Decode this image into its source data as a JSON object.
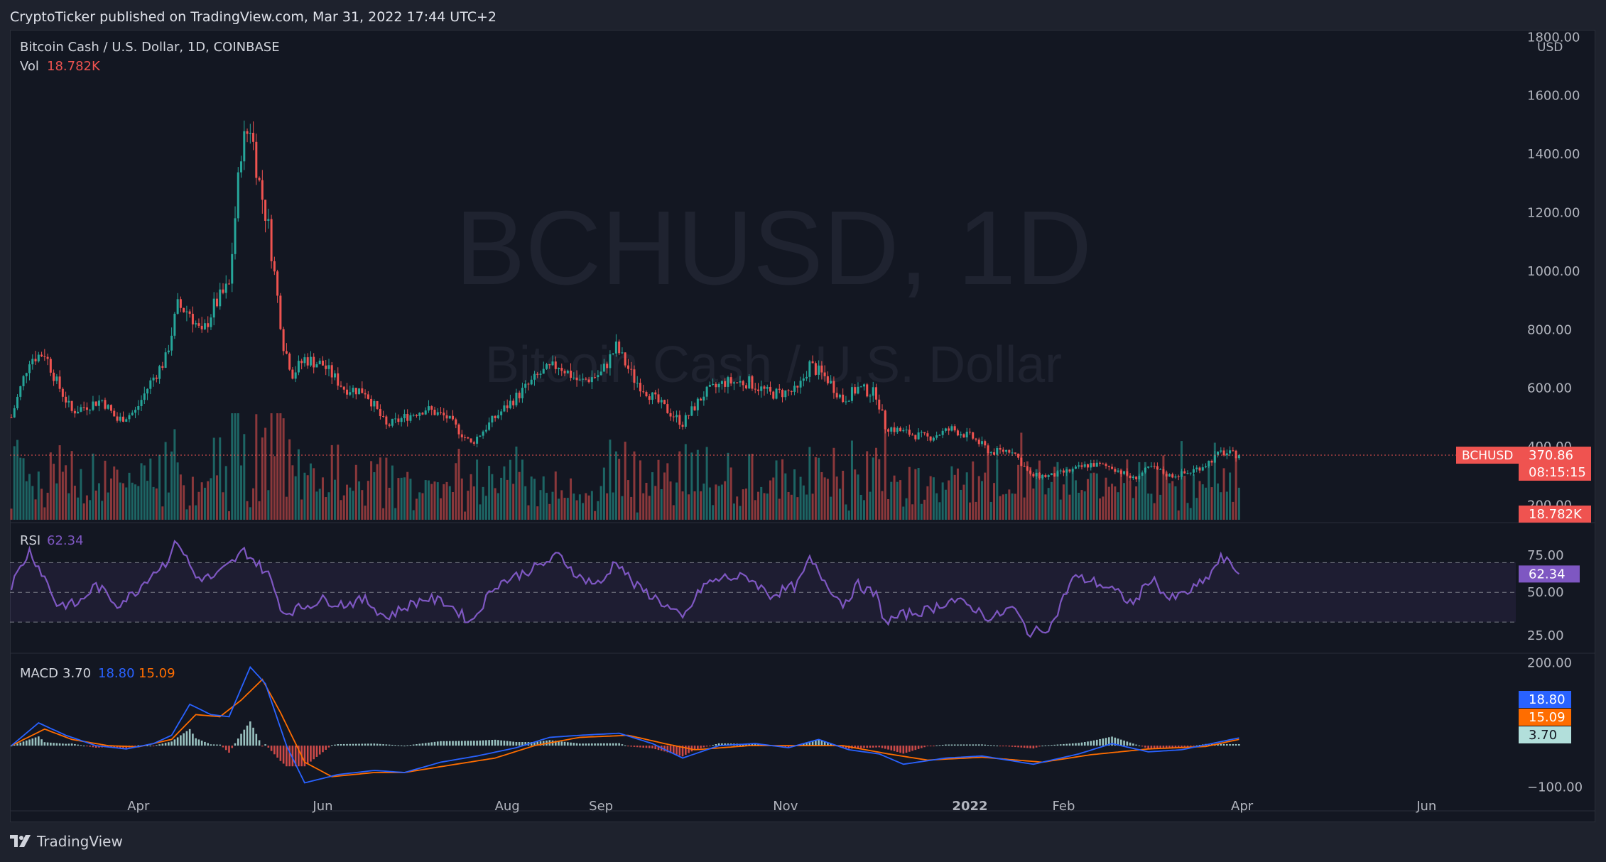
{
  "header": {
    "published": "CryptoTicker published on TradingView.com, Mar 31, 2022 17:44 UTC+2"
  },
  "footer": {
    "brand": "TradingView"
  },
  "watermark": {
    "symbol": "BCHUSD, 1D",
    "name": "Bitcoin Cash / U.S. Dollar"
  },
  "legend": {
    "main": "Bitcoin Cash / U.S. Dollar, 1D, COINBASE",
    "vol_label": "Vol",
    "vol_value": "18.782K",
    "rsi_label": "RSI",
    "rsi_value": "62.34",
    "macd_label": "MACD",
    "macd_hist": "3.70",
    "macd_line": "18.80",
    "macd_signal": "15.09"
  },
  "price_axis": {
    "currency": "USD",
    "ticks": [
      "200.00",
      "400.00",
      "600.00",
      "800.00",
      "1000.00",
      "1200.00",
      "1400.00",
      "1600.00",
      "1800.00"
    ],
    "symbol_tag": "BCHUSD",
    "last_price": "370.86",
    "countdown": "08:15:15",
    "vol_tag": "18.782K"
  },
  "rsi_axis": {
    "ticks": [
      "25.00",
      "50.00",
      "75.00"
    ],
    "tag": "62.34"
  },
  "macd_axis": {
    "ticks": [
      "−100.00",
      "200.00"
    ],
    "tags": [
      "18.80",
      "15.09",
      "3.70"
    ]
  },
  "time_axis": [
    "Apr",
    "Jun",
    "Aug",
    "Sep",
    "Nov",
    "2022",
    "Feb",
    "Apr",
    "Jun"
  ],
  "colors": {
    "bg": "#131722",
    "up": "#26a69a",
    "down": "#ef5350",
    "rsi": "#7e57c2",
    "macd": "#2962ff",
    "signal": "#ff6d00",
    "hist_up": "#b2dfdb",
    "hist_down": "#ef5350",
    "grid": "#2a2e39"
  },
  "chart_data": [
    {
      "type": "candlestick",
      "title": "Bitcoin Cash / U.S. Dollar, 1D, COINBASE",
      "ylim": [
        150,
        1800
      ],
      "x_range": [
        "2021-02-18",
        "2022-03-31"
      ],
      "last_price": 370.86,
      "price_path": [
        [
          "2021-02-18",
          500
        ],
        [
          "2021-02-24",
          700
        ],
        [
          "2021-03-01",
          720
        ],
        [
          "2021-03-05",
          620
        ],
        [
          "2021-03-10",
          520
        ],
        [
          "2021-03-15",
          540
        ],
        [
          "2021-03-20",
          560
        ],
        [
          "2021-03-25",
          490
        ],
        [
          "2021-03-31",
          520
        ],
        [
          "2021-04-05",
          620
        ],
        [
          "2021-04-10",
          700
        ],
        [
          "2021-04-14",
          880
        ],
        [
          "2021-04-18",
          860
        ],
        [
          "2021-04-22",
          780
        ],
        [
          "2021-04-26",
          880
        ],
        [
          "2021-05-01",
          950
        ],
        [
          "2021-05-05",
          1420
        ],
        [
          "2021-05-08",
          1500
        ],
        [
          "2021-05-11",
          1300
        ],
        [
          "2021-05-14",
          1150
        ],
        [
          "2021-05-19",
          750
        ],
        [
          "2021-05-22",
          650
        ],
        [
          "2021-05-26",
          700
        ],
        [
          "2021-06-01",
          680
        ],
        [
          "2021-06-08",
          600
        ],
        [
          "2021-06-15",
          590
        ],
        [
          "2021-06-22",
          470
        ],
        [
          "2021-06-28",
          500
        ],
        [
          "2021-07-05",
          530
        ],
        [
          "2021-07-12",
          500
        ],
        [
          "2021-07-20",
          410
        ],
        [
          "2021-07-28",
          500
        ],
        [
          "2021-08-05",
          580
        ],
        [
          "2021-08-12",
          650
        ],
        [
          "2021-08-18",
          680
        ],
        [
          "2021-08-25",
          620
        ],
        [
          "2021-09-01",
          650
        ],
        [
          "2021-09-06",
          740
        ],
        [
          "2021-09-12",
          630
        ],
        [
          "2021-09-20",
          550
        ],
        [
          "2021-09-28",
          480
        ],
        [
          "2021-10-05",
          580
        ],
        [
          "2021-10-12",
          620
        ],
        [
          "2021-10-20",
          620
        ],
        [
          "2021-10-27",
          580
        ],
        [
          "2021-11-05",
          590
        ],
        [
          "2021-11-09",
          680
        ],
        [
          "2021-11-15",
          630
        ],
        [
          "2021-11-20",
          560
        ],
        [
          "2021-11-25",
          600
        ],
        [
          "2021-12-01",
          580
        ],
        [
          "2021-12-04",
          470
        ],
        [
          "2021-12-10",
          450
        ],
        [
          "2021-12-18",
          430
        ],
        [
          "2021-12-26",
          460
        ],
        [
          "2022-01-02",
          430
        ],
        [
          "2022-01-08",
          380
        ],
        [
          "2022-01-15",
          390
        ],
        [
          "2022-01-21",
          300
        ],
        [
          "2022-01-28",
          300
        ],
        [
          "2022-02-04",
          320
        ],
        [
          "2022-02-10",
          340
        ],
        [
          "2022-02-17",
          330
        ],
        [
          "2022-02-24",
          290
        ],
        [
          "2022-03-02",
          330
        ],
        [
          "2022-03-08",
          300
        ],
        [
          "2022-03-14",
          310
        ],
        [
          "2022-03-20",
          340
        ],
        [
          "2022-03-25",
          380
        ],
        [
          "2022-03-31",
          371
        ]
      ]
    },
    {
      "type": "line",
      "title": "RSI",
      "ylim": [
        10,
        95
      ],
      "series": [
        {
          "name": "RSI",
          "points": [
            [
              "2021-02-18",
              55
            ],
            [
              "2021-02-24",
              78
            ],
            [
              "2021-03-01",
              60
            ],
            [
              "2021-03-05",
              42
            ],
            [
              "2021-03-12",
              42
            ],
            [
              "2021-03-18",
              55
            ],
            [
              "2021-03-25",
              42
            ],
            [
              "2021-03-31",
              50
            ],
            [
              "2021-04-05",
              62
            ],
            [
              "2021-04-10",
              70
            ],
            [
              "2021-04-14",
              85
            ],
            [
              "2021-04-20",
              60
            ],
            [
              "2021-04-26",
              60
            ],
            [
              "2021-05-02",
              70
            ],
            [
              "2021-05-06",
              78
            ],
            [
              "2021-05-10",
              70
            ],
            [
              "2021-05-14",
              62
            ],
            [
              "2021-05-19",
              36
            ],
            [
              "2021-05-25",
              40
            ],
            [
              "2021-06-01",
              45
            ],
            [
              "2021-06-08",
              42
            ],
            [
              "2021-06-15",
              45
            ],
            [
              "2021-06-22",
              33
            ],
            [
              "2021-06-28",
              40
            ],
            [
              "2021-07-05",
              46
            ],
            [
              "2021-07-12",
              43
            ],
            [
              "2021-07-20",
              30
            ],
            [
              "2021-07-28",
              55
            ],
            [
              "2021-08-05",
              62
            ],
            [
              "2021-08-12",
              68
            ],
            [
              "2021-08-18",
              75
            ],
            [
              "2021-08-25",
              60
            ],
            [
              "2021-09-01",
              55
            ],
            [
              "2021-09-06",
              72
            ],
            [
              "2021-09-12",
              55
            ],
            [
              "2021-09-20",
              45
            ],
            [
              "2021-09-28",
              32
            ],
            [
              "2021-10-05",
              55
            ],
            [
              "2021-10-12",
              60
            ],
            [
              "2021-10-20",
              60
            ],
            [
              "2021-10-27",
              48
            ],
            [
              "2021-11-05",
              55
            ],
            [
              "2021-11-09",
              72
            ],
            [
              "2021-11-15",
              55
            ],
            [
              "2021-11-20",
              42
            ],
            [
              "2021-11-25",
              55
            ],
            [
              "2021-12-01",
              48
            ],
            [
              "2021-12-04",
              30
            ],
            [
              "2021-12-10",
              35
            ],
            [
              "2021-12-18",
              38
            ],
            [
              "2021-12-26",
              45
            ],
            [
              "2022-01-02",
              40
            ],
            [
              "2022-01-08",
              32
            ],
            [
              "2022-01-15",
              40
            ],
            [
              "2022-01-21",
              22
            ],
            [
              "2022-01-28",
              28
            ],
            [
              "2022-02-04",
              60
            ],
            [
              "2022-02-10",
              58
            ],
            [
              "2022-02-17",
              52
            ],
            [
              "2022-02-24",
              42
            ],
            [
              "2022-03-02",
              60
            ],
            [
              "2022-03-08",
              45
            ],
            [
              "2022-03-14",
              50
            ],
            [
              "2022-03-20",
              58
            ],
            [
              "2022-03-25",
              73
            ],
            [
              "2022-03-29",
              68
            ],
            [
              "2022-03-31",
              62.34
            ]
          ]
        }
      ],
      "bands": [
        30,
        50,
        70
      ],
      "last": 62.34
    },
    {
      "type": "line",
      "title": "MACD",
      "ylim": [
        -120,
        220
      ],
      "series": [
        {
          "name": "MACD",
          "points": [
            [
              "2021-02-18",
              0
            ],
            [
              "2021-02-27",
              55
            ],
            [
              "2021-03-08",
              25
            ],
            [
              "2021-03-18",
              0
            ],
            [
              "2021-03-28",
              -8
            ],
            [
              "2021-04-06",
              5
            ],
            [
              "2021-04-12",
              25
            ],
            [
              "2021-04-18",
              100
            ],
            [
              "2021-04-25",
              75
            ],
            [
              "2021-05-01",
              70
            ],
            [
              "2021-05-08",
              190
            ],
            [
              "2021-05-13",
              150
            ],
            [
              "2021-05-20",
              0
            ],
            [
              "2021-05-26",
              -90
            ],
            [
              "2021-06-06",
              -70
            ],
            [
              "2021-06-18",
              -60
            ],
            [
              "2021-06-28",
              -65
            ],
            [
              "2021-07-10",
              -40
            ],
            [
              "2021-07-22",
              -25
            ],
            [
              "2021-08-04",
              -5
            ],
            [
              "2021-08-15",
              20
            ],
            [
              "2021-08-25",
              25
            ],
            [
              "2021-09-07",
              30
            ],
            [
              "2021-09-18",
              5
            ],
            [
              "2021-09-28",
              -30
            ],
            [
              "2021-10-10",
              0
            ],
            [
              "2021-10-22",
              5
            ],
            [
              "2021-11-02",
              -5
            ],
            [
              "2021-11-12",
              15
            ],
            [
              "2021-11-22",
              -10
            ],
            [
              "2021-12-02",
              -20
            ],
            [
              "2021-12-10",
              -45
            ],
            [
              "2021-12-24",
              -30
            ],
            [
              "2022-01-05",
              -25
            ],
            [
              "2022-01-22",
              -45
            ],
            [
              "2022-02-06",
              -20
            ],
            [
              "2022-02-17",
              5
            ],
            [
              "2022-03-01",
              -15
            ],
            [
              "2022-03-12",
              -10
            ],
            [
              "2022-03-22",
              5
            ],
            [
              "2022-03-31",
              18.8
            ]
          ]
        },
        {
          "name": "Signal",
          "points": [
            [
              "2021-02-18",
              0
            ],
            [
              "2021-03-01",
              40
            ],
            [
              "2021-03-10",
              15
            ],
            [
              "2021-03-22",
              0
            ],
            [
              "2021-04-01",
              -3
            ],
            [
              "2021-04-12",
              15
            ],
            [
              "2021-04-20",
              75
            ],
            [
              "2021-04-28",
              70
            ],
            [
              "2021-05-05",
              110
            ],
            [
              "2021-05-12",
              160
            ],
            [
              "2021-05-18",
              80
            ],
            [
              "2021-05-26",
              -40
            ],
            [
              "2021-06-04",
              -75
            ],
            [
              "2021-06-18",
              -65
            ],
            [
              "2021-06-28",
              -65
            ],
            [
              "2021-07-15",
              -45
            ],
            [
              "2021-07-28",
              -30
            ],
            [
              "2021-08-10",
              0
            ],
            [
              "2021-08-25",
              20
            ],
            [
              "2021-09-10",
              25
            ],
            [
              "2021-09-22",
              5
            ],
            [
              "2021-10-02",
              -10
            ],
            [
              "2021-10-20",
              0
            ],
            [
              "2021-11-05",
              0
            ],
            [
              "2021-11-20",
              0
            ],
            [
              "2021-12-05",
              -20
            ],
            [
              "2021-12-18",
              -35
            ],
            [
              "2022-01-05",
              -28
            ],
            [
              "2022-01-25",
              -40
            ],
            [
              "2022-02-10",
              -22
            ],
            [
              "2022-03-01",
              -8
            ],
            [
              "2022-03-20",
              -2
            ],
            [
              "2022-03-31",
              15.09
            ]
          ]
        }
      ],
      "histogram_last": 3.7
    }
  ]
}
